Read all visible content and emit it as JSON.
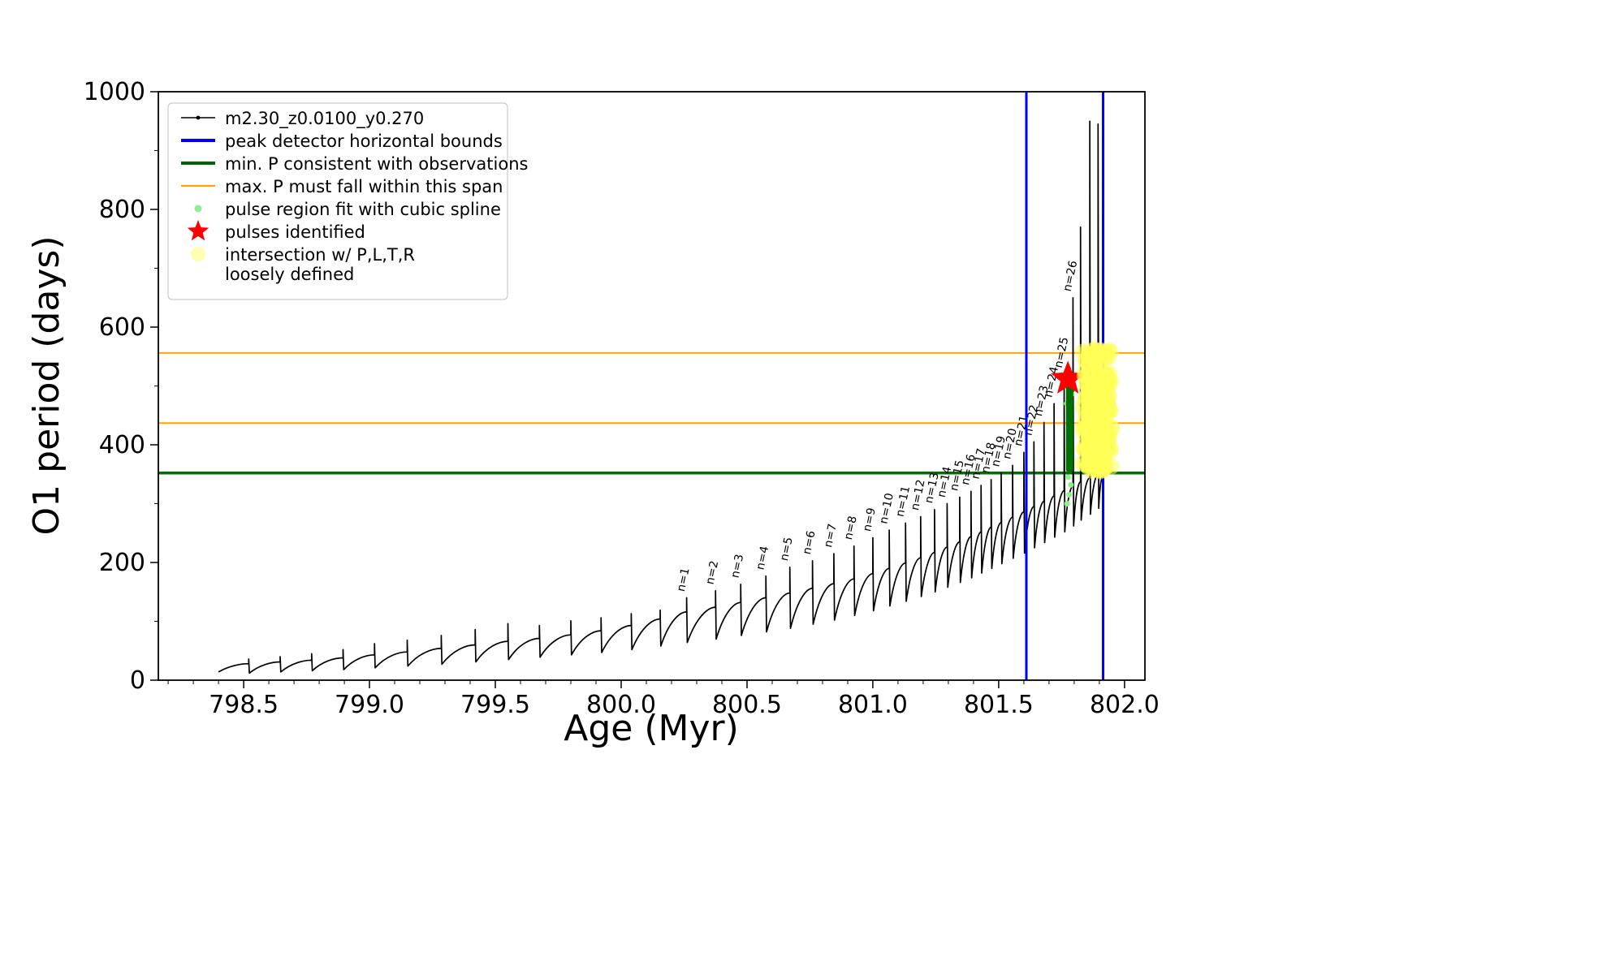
{
  "chart_data": {
    "type": "line",
    "title": "",
    "xlabel": "Age (Myr)",
    "ylabel": "O1 period (days)",
    "xlim": [
      798.161,
      802.081
    ],
    "ylim": [
      0,
      1000
    ],
    "xticks": {
      "values": [
        798.5,
        799.0,
        799.5,
        800.0,
        800.5,
        801.0,
        801.5,
        802.0
      ],
      "labels": [
        "798.5",
        "799.0",
        "799.5",
        "800.0",
        "800.5",
        "801.0",
        "801.5",
        "802.0"
      ],
      "minor_step": 0.1
    },
    "yticks": {
      "values": [
        0,
        200,
        400,
        600,
        800,
        1000
      ],
      "labels": [
        "0",
        "200",
        "400",
        "600",
        "800",
        "1000"
      ],
      "minor_step": 100
    },
    "grid": false,
    "legend": {
      "position": "upper left",
      "entries": [
        {
          "label": "m2.30_z0.0100_y0.270",
          "marker": "line-dot",
          "color": "#000000"
        },
        {
          "label": "peak detector horizontal bounds",
          "marker": "line-thick",
          "color": "#0000ff"
        },
        {
          "label": "min. P consistent with observations",
          "marker": "line-thick",
          "color": "#006400"
        },
        {
          "label": "max. P must fall within this span",
          "marker": "line",
          "color": "#ffa500"
        },
        {
          "label": "pulse region fit with cubic spline",
          "marker": "dot-small",
          "color": "#90ee90"
        },
        {
          "label": "pulses identified",
          "marker": "star",
          "color": "#ff0000"
        },
        {
          "label": "intersection w/ P,L,T,R\nloosely defined",
          "marker": "dot-big",
          "color": "#ffffb0"
        }
      ]
    },
    "hlines": [
      {
        "y": 352,
        "color": "#007000",
        "width": 3.5,
        "name": "min-p-line"
      },
      {
        "y": 437,
        "color": "#ffa500",
        "width": 2,
        "name": "max-p-span-lower-line"
      },
      {
        "y": 556,
        "color": "#ffa500",
        "width": 2,
        "name": "max-p-span-upper-line"
      }
    ],
    "vlines": [
      {
        "x": 801.61,
        "color": "#0000ff",
        "width": 3,
        "name": "peak-bound-left-line"
      },
      {
        "x": 801.915,
        "color": "#0000ff",
        "width": 3,
        "name": "peak-bound-right-line"
      }
    ],
    "series": {
      "name": "m2.30_z0.0100_y0.270",
      "color": "#000000",
      "start": {
        "x": 798.4,
        "y": 14
      },
      "end": {
        "x": 801.915,
        "y": 348
      },
      "cycles": [
        {
          "x": 798.52,
          "peak": 36,
          "shoulder": 28,
          "dip": 12
        },
        {
          "x": 798.645,
          "peak": 40,
          "shoulder": 31,
          "dip": 14
        },
        {
          "x": 798.77,
          "peak": 45,
          "shoulder": 34,
          "dip": 16
        },
        {
          "x": 798.895,
          "peak": 52,
          "shoulder": 38,
          "dip": 18
        },
        {
          "x": 799.02,
          "peak": 62,
          "shoulder": 43,
          "dip": 21
        },
        {
          "x": 799.15,
          "peak": 68,
          "shoulder": 48,
          "dip": 24
        },
        {
          "x": 799.285,
          "peak": 76,
          "shoulder": 54,
          "dip": 27
        },
        {
          "x": 799.42,
          "peak": 86,
          "shoulder": 60,
          "dip": 31
        },
        {
          "x": 799.55,
          "peak": 96,
          "shoulder": 66,
          "dip": 35
        },
        {
          "x": 799.675,
          "peak": 93,
          "shoulder": 71,
          "dip": 39
        },
        {
          "x": 799.8,
          "peak": 101,
          "shoulder": 77,
          "dip": 43
        },
        {
          "x": 799.92,
          "peak": 106,
          "shoulder": 84,
          "dip": 47
        },
        {
          "x": 800.04,
          "peak": 113,
          "shoulder": 93,
          "dip": 52
        },
        {
          "x": 800.155,
          "peak": 119,
          "shoulder": 104,
          "dip": 58
        },
        {
          "x": 800.26,
          "peak": 140,
          "shoulder": 116,
          "dip": 64,
          "label": "n=1"
        },
        {
          "x": 800.375,
          "peak": 152,
          "shoulder": 124,
          "dip": 70,
          "label": "n=2"
        },
        {
          "x": 800.475,
          "peak": 163,
          "shoulder": 132,
          "dip": 76,
          "label": "n=3"
        },
        {
          "x": 800.575,
          "peak": 177,
          "shoulder": 140,
          "dip": 82,
          "label": "n=4"
        },
        {
          "x": 800.67,
          "peak": 192,
          "shoulder": 148,
          "dip": 88,
          "label": "n=5"
        },
        {
          "x": 800.76,
          "peak": 203,
          "shoulder": 156,
          "dip": 95,
          "label": "n=6"
        },
        {
          "x": 800.845,
          "peak": 215,
          "shoulder": 164,
          "dip": 102,
          "label": "n=7"
        },
        {
          "x": 800.925,
          "peak": 228,
          "shoulder": 172,
          "dip": 110,
          "label": "n=8"
        },
        {
          "x": 801.0,
          "peak": 242,
          "shoulder": 181,
          "dip": 118,
          "label": "n=9"
        },
        {
          "x": 801.065,
          "peak": 255,
          "shoulder": 190,
          "dip": 126,
          "label": "n=10"
        },
        {
          "x": 801.13,
          "peak": 267,
          "shoulder": 199,
          "dip": 134,
          "label": "n=11"
        },
        {
          "x": 801.19,
          "peak": 278,
          "shoulder": 208,
          "dip": 142,
          "label": "n=12"
        },
        {
          "x": 801.245,
          "peak": 290,
          "shoulder": 217,
          "dip": 150,
          "label": "n=13"
        },
        {
          "x": 801.295,
          "peak": 300,
          "shoulder": 226,
          "dip": 158,
          "label": "n=14"
        },
        {
          "x": 801.345,
          "peak": 311,
          "shoulder": 235,
          "dip": 166,
          "label": "n=15"
        },
        {
          "x": 801.39,
          "peak": 321,
          "shoulder": 244,
          "dip": 174,
          "label": "n=16"
        },
        {
          "x": 801.43,
          "peak": 331,
          "shoulder": 252,
          "dip": 182,
          "label": "n=17"
        },
        {
          "x": 801.47,
          "peak": 341,
          "shoulder": 260,
          "dip": 190,
          "label": "n=18"
        },
        {
          "x": 801.51,
          "peak": 352,
          "shoulder": 268,
          "dip": 198,
          "label": "n=19"
        },
        {
          "x": 801.555,
          "peak": 365,
          "shoulder": 277,
          "dip": 207,
          "label": "n=20"
        },
        {
          "x": 801.6,
          "peak": 387,
          "shoulder": 286,
          "dip": 216,
          "label": "n=21"
        },
        {
          "x": 801.64,
          "peak": 405,
          "shoulder": 295,
          "dip": 225,
          "label": "n=22"
        },
        {
          "x": 801.68,
          "peak": 438,
          "shoulder": 304,
          "dip": 234,
          "label": "n=23"
        },
        {
          "x": 801.72,
          "peak": 470,
          "shoulder": 313,
          "dip": 243,
          "label": "n=24"
        },
        {
          "x": 801.76,
          "peak": 520,
          "shoulder": 322,
          "dip": 252,
          "label": "n=25"
        },
        {
          "x": 801.795,
          "peak": 650,
          "shoulder": 330,
          "dip": 262,
          "label": "n=26"
        },
        {
          "x": 801.825,
          "peak": 770,
          "shoulder": 337,
          "dip": 272
        },
        {
          "x": 801.862,
          "peak": 950,
          "shoulder": 344,
          "dip": 282
        },
        {
          "x": 801.895,
          "peak": 945,
          "shoulder": 350,
          "dip": 292
        }
      ]
    },
    "pulse_region": {
      "x": 801.782,
      "bar_y": [
        358,
        505
      ],
      "bar_color": "#007000",
      "point_color": "#90ee90",
      "points": [
        {
          "x": 801.772,
          "y": 300
        },
        {
          "x": 801.78,
          "y": 315
        },
        {
          "x": 801.787,
          "y": 332
        },
        {
          "x": 801.775,
          "y": 345
        },
        {
          "x": 801.784,
          "y": 360
        },
        {
          "x": 801.77,
          "y": 470
        },
        {
          "x": 801.79,
          "y": 486
        },
        {
          "x": 801.777,
          "y": 500
        },
        {
          "x": 801.786,
          "y": 510
        }
      ]
    },
    "pulses_identified": {
      "x": 801.775,
      "y": 512,
      "color": "#ff0000"
    },
    "intersection_region": {
      "x_min": 801.832,
      "x_max": 801.948,
      "y_min": 352,
      "y_max": 562,
      "color": "#ffff55"
    }
  }
}
